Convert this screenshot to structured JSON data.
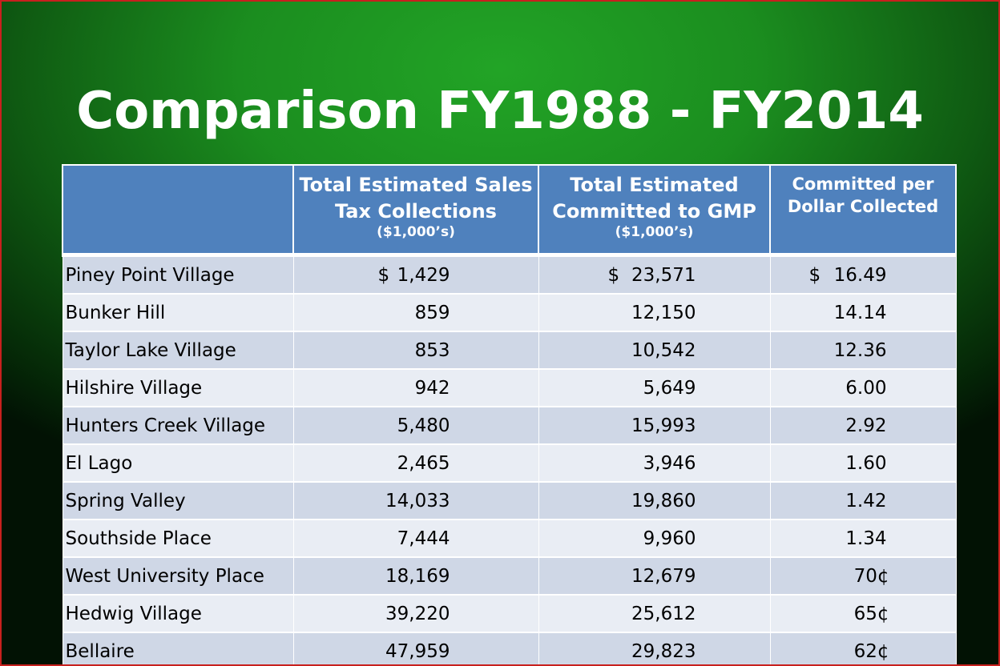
{
  "title": "Comparison FY1988 - FY2014",
  "table": {
    "headers": [
      {
        "line1": "",
        "line2": "",
        "sub": ""
      },
      {
        "line1": "Total Estimated Sales",
        "line2": "Tax Collections",
        "sub": "($1,000’s)"
      },
      {
        "line1": "Total Estimated",
        "line2": "Committed to GMP",
        "sub": "($1,000’s)"
      },
      {
        "line1": "Committed per",
        "line2": "Dollar Collected",
        "sub": ""
      }
    ],
    "currency_symbol": "$",
    "rows": [
      {
        "name": "Piney Point Village",
        "sales": "1,429",
        "committed": "23,571",
        "per_dollar": "16.49"
      },
      {
        "name": "Bunker Hill",
        "sales": "859",
        "committed": "12,150",
        "per_dollar": "14.14"
      },
      {
        "name": "Taylor Lake Village",
        "sales": "853",
        "committed": "10,542",
        "per_dollar": "12.36"
      },
      {
        "name": "Hilshire Village",
        "sales": "942",
        "committed": "5,649",
        "per_dollar": "6.00"
      },
      {
        "name": "Hunters Creek Village",
        "sales": "5,480",
        "committed": "15,993",
        "per_dollar": "2.92"
      },
      {
        "name": "El Lago",
        "sales": "2,465",
        "committed": "3,946",
        "per_dollar": "1.60"
      },
      {
        "name": "Spring Valley",
        "sales": "14,033",
        "committed": "19,860",
        "per_dollar": "1.42"
      },
      {
        "name": "Southside Place",
        "sales": "7,444",
        "committed": "9,960",
        "per_dollar": "1.34"
      },
      {
        "name": "West University Place",
        "sales": "18,169",
        "committed": "12,679",
        "per_dollar": "70¢"
      },
      {
        "name": "Hedwig Village",
        "sales": "39,220",
        "committed": "25,612",
        "per_dollar": "65¢"
      },
      {
        "name": "Bellaire",
        "sales": "47,959",
        "committed": "29,823",
        "per_dollar": "62¢"
      }
    ]
  },
  "colors": {
    "header_blue": "#4f81bd",
    "row_odd": "#cfd7e6",
    "row_even": "#e9edf4",
    "background_green": "#1b8d1f",
    "frame_red": "#c8201e"
  }
}
